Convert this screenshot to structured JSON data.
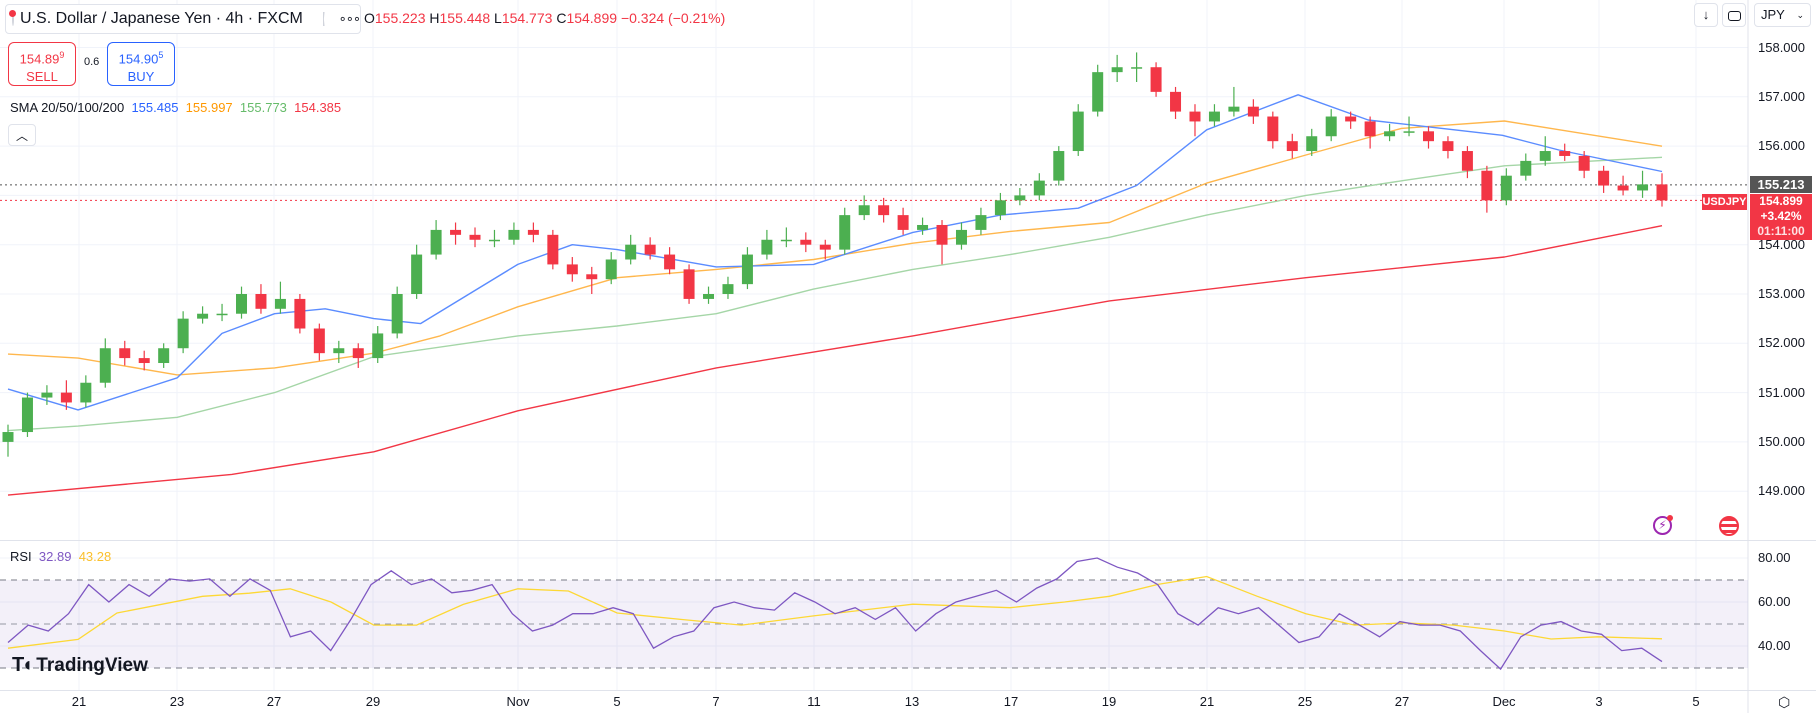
{
  "header": {
    "symbol_title": "U.S. Dollar / Japanese Yen · 4h · FXCM",
    "ohlc": {
      "o_label": "O",
      "o": "155.223",
      "h_label": "H",
      "h": "155.448",
      "l_label": "L",
      "l": "154.773",
      "c_label": "C",
      "c": "154.899",
      "change": "−0.324 (−0.21%)"
    },
    "sell": {
      "price": "154.89",
      "price_sup": "9",
      "label": "SELL"
    },
    "buy": {
      "price": "154.90",
      "price_sup": "5",
      "label": "BUY"
    },
    "spread": "0.6",
    "sma_legend": {
      "label": "SMA 20/50/100/200",
      "v20": "155.485",
      "v50": "155.997",
      "v100": "155.773",
      "v200": "154.385"
    },
    "collapse_icon": "chevron-up-icon",
    "currency_dropdown": "JPY"
  },
  "price_axis": {
    "labels": [
      "158.000",
      "157.000",
      "156.000",
      "154.000",
      "153.000",
      "152.000",
      "151.000",
      "150.000",
      "149.000"
    ],
    "prev_close_label": "155.213",
    "last_price": {
      "symbol": "USDJPY",
      "price": "154.899",
      "change": "+3.42%",
      "countdown": "01:11:00"
    }
  },
  "rsi_legend": {
    "label": "RSI",
    "rsi": "32.89",
    "ma": "43.28"
  },
  "rsi_axis": [
    "80.00",
    "60.00",
    "40.00"
  ],
  "time_axis": [
    "21",
    "23",
    "27",
    "29",
    "Nov",
    "5",
    "7",
    "11",
    "13",
    "17",
    "19",
    "21",
    "25",
    "27",
    "Dec",
    "3",
    "5"
  ],
  "logo": "TradingView",
  "colors": {
    "up": "#4caf50",
    "down": "#f23645",
    "sma20": "#5b8cff",
    "sma50": "#ffb74d",
    "sma100": "#a5d6a7",
    "sma200": "#f23645",
    "rsi": "#7e57c2",
    "rsi_ma": "#fdd835"
  },
  "chart_data": {
    "type": "candlestick",
    "symbol": "USDJPY",
    "interval": "4h",
    "ylim": [
      148.7,
      158.3
    ],
    "grid": true,
    "candles_ohlc": [
      [
        150.0,
        150.35,
        149.7,
        150.2
      ],
      [
        150.2,
        151.0,
        150.1,
        150.9
      ],
      [
        150.9,
        151.15,
        150.75,
        151.0
      ],
      [
        151.0,
        151.25,
        150.65,
        150.8
      ],
      [
        150.8,
        151.35,
        150.7,
        151.2
      ],
      [
        151.2,
        152.1,
        151.1,
        151.9
      ],
      [
        151.9,
        152.05,
        151.55,
        151.7
      ],
      [
        151.7,
        151.85,
        151.45,
        151.6
      ],
      [
        151.6,
        152.0,
        151.5,
        151.9
      ],
      [
        151.9,
        152.65,
        151.8,
        152.5
      ],
      [
        152.5,
        152.75,
        152.4,
        152.6
      ],
      [
        152.6,
        152.8,
        152.45,
        152.6
      ],
      [
        152.6,
        153.15,
        152.5,
        153.0
      ],
      [
        153.0,
        153.2,
        152.6,
        152.7
      ],
      [
        152.7,
        153.25,
        152.6,
        152.9
      ],
      [
        152.9,
        153.0,
        152.2,
        152.3
      ],
      [
        152.3,
        152.4,
        151.65,
        151.8
      ],
      [
        151.8,
        152.05,
        151.6,
        151.9
      ],
      [
        151.9,
        152.0,
        151.5,
        151.7
      ],
      [
        151.7,
        152.35,
        151.6,
        152.2
      ],
      [
        152.2,
        153.15,
        152.1,
        153.0
      ],
      [
        153.0,
        154.0,
        152.9,
        153.8
      ],
      [
        153.8,
        154.5,
        153.7,
        154.3
      ],
      [
        154.3,
        154.45,
        154.0,
        154.2
      ],
      [
        154.2,
        154.35,
        153.95,
        154.1
      ],
      [
        154.1,
        154.3,
        153.95,
        154.1
      ],
      [
        154.1,
        154.45,
        154.0,
        154.3
      ],
      [
        154.3,
        154.45,
        154.05,
        154.2
      ],
      [
        154.2,
        154.3,
        153.5,
        153.6
      ],
      [
        153.6,
        153.75,
        153.25,
        153.4
      ],
      [
        153.4,
        153.55,
        153.0,
        153.3
      ],
      [
        153.3,
        153.85,
        153.2,
        153.7
      ],
      [
        153.7,
        154.2,
        153.6,
        154.0
      ],
      [
        154.0,
        154.15,
        153.7,
        153.8
      ],
      [
        153.8,
        153.95,
        153.4,
        153.5
      ],
      [
        153.5,
        153.6,
        152.8,
        152.9
      ],
      [
        152.9,
        153.15,
        152.8,
        153.0
      ],
      [
        153.0,
        153.35,
        152.9,
        153.2
      ],
      [
        153.2,
        153.95,
        153.1,
        153.8
      ],
      [
        153.8,
        154.3,
        153.7,
        154.1
      ],
      [
        154.1,
        154.35,
        153.95,
        154.1
      ],
      [
        154.1,
        154.25,
        153.85,
        154.0
      ],
      [
        154.0,
        154.1,
        153.7,
        153.9
      ],
      [
        153.9,
        154.75,
        153.8,
        154.6
      ],
      [
        154.6,
        155.0,
        154.5,
        154.8
      ],
      [
        154.8,
        154.95,
        154.45,
        154.6
      ],
      [
        154.6,
        154.75,
        154.2,
        154.3
      ],
      [
        154.3,
        154.55,
        154.2,
        154.4
      ],
      [
        154.4,
        154.5,
        153.6,
        154.0
      ],
      [
        154.0,
        154.45,
        153.9,
        154.3
      ],
      [
        154.3,
        154.75,
        154.2,
        154.6
      ],
      [
        154.6,
        155.05,
        154.5,
        154.9
      ],
      [
        154.9,
        155.15,
        154.8,
        155.0
      ],
      [
        155.0,
        155.45,
        154.9,
        155.3
      ],
      [
        155.3,
        156.0,
        155.2,
        155.9
      ],
      [
        155.9,
        156.85,
        155.8,
        156.7
      ],
      [
        156.7,
        157.65,
        156.6,
        157.5
      ],
      [
        157.5,
        157.85,
        157.3,
        157.6
      ],
      [
        157.6,
        157.9,
        157.3,
        157.6
      ],
      [
        157.6,
        157.7,
        157.0,
        157.1
      ],
      [
        157.1,
        157.2,
        156.55,
        156.7
      ],
      [
        156.7,
        156.85,
        156.2,
        156.5
      ],
      [
        156.5,
        156.85,
        156.4,
        156.7
      ],
      [
        156.7,
        157.2,
        156.6,
        156.8
      ],
      [
        156.8,
        156.95,
        156.45,
        156.6
      ],
      [
        156.6,
        156.7,
        155.95,
        156.1
      ],
      [
        156.1,
        156.25,
        155.75,
        155.9
      ],
      [
        155.9,
        156.35,
        155.8,
        156.2
      ],
      [
        156.2,
        156.75,
        156.1,
        156.6
      ],
      [
        156.6,
        156.7,
        156.35,
        156.5
      ],
      [
        156.5,
        156.6,
        155.95,
        156.2
      ],
      [
        156.2,
        156.45,
        156.1,
        156.3
      ],
      [
        156.3,
        156.6,
        156.2,
        156.3
      ],
      [
        156.3,
        156.4,
        155.95,
        156.1
      ],
      [
        156.1,
        156.2,
        155.75,
        155.9
      ],
      [
        155.9,
        156.0,
        155.35,
        155.5
      ],
      [
        155.5,
        155.6,
        154.65,
        154.9
      ],
      [
        154.9,
        155.55,
        154.8,
        155.4
      ],
      [
        155.4,
        155.85,
        155.3,
        155.7
      ],
      [
        155.7,
        156.2,
        155.6,
        155.9
      ],
      [
        155.9,
        156.05,
        155.7,
        155.8
      ],
      [
        155.8,
        155.9,
        155.35,
        155.5
      ],
      [
        155.5,
        155.6,
        155.05,
        155.2
      ],
      [
        155.2,
        155.4,
        155.0,
        155.1
      ],
      [
        155.1,
        155.5,
        154.95,
        155.223
      ],
      [
        155.223,
        155.448,
        154.773,
        154.899
      ]
    ],
    "reference_lines": {
      "prev_close": 155.213,
      "last": 154.899
    },
    "sma_series_bar_value": {
      "sma20": [
        [
          0,
          151.07
        ],
        [
          3.6,
          150.65
        ],
        [
          8.7,
          151.3
        ],
        [
          11,
          152.2
        ],
        [
          13.7,
          152.6
        ],
        [
          16.3,
          152.7
        ],
        [
          18.8,
          152.5
        ],
        [
          21.2,
          152.4
        ],
        [
          26.2,
          153.6
        ],
        [
          29,
          154.0
        ],
        [
          31.3,
          153.9
        ],
        [
          36.4,
          153.55
        ],
        [
          41.4,
          153.6
        ],
        [
          46.5,
          154.25
        ],
        [
          51,
          154.6
        ],
        [
          55,
          154.74
        ],
        [
          58,
          155.2
        ],
        [
          61.6,
          156.33
        ],
        [
          66.3,
          157.04
        ],
        [
          69.9,
          156.53
        ],
        [
          76.8,
          156.22
        ],
        [
          79.7,
          155.92
        ],
        [
          85,
          155.485
        ]
      ],
      "sma50": [
        [
          0,
          151.78
        ],
        [
          3.6,
          151.7
        ],
        [
          8.7,
          151.36
        ],
        [
          13.7,
          151.5
        ],
        [
          18.8,
          151.8
        ],
        [
          22.2,
          152.15
        ],
        [
          26.2,
          152.74
        ],
        [
          31.3,
          153.33
        ],
        [
          36.4,
          153.5
        ],
        [
          41.4,
          153.7
        ],
        [
          46.5,
          154.03
        ],
        [
          51.5,
          154.27
        ],
        [
          56.6,
          154.45
        ],
        [
          61.6,
          155.25
        ],
        [
          66.7,
          155.82
        ],
        [
          71.6,
          156.36
        ],
        [
          76.9,
          156.51
        ],
        [
          85,
          155.997
        ]
      ],
      "sma100": [
        [
          0,
          150.23
        ],
        [
          3.6,
          150.32
        ],
        [
          8.7,
          150.5
        ],
        [
          13.7,
          151.0
        ],
        [
          18.8,
          151.73
        ],
        [
          26.2,
          152.15
        ],
        [
          31.3,
          152.35
        ],
        [
          36.4,
          152.6
        ],
        [
          41.4,
          153.1
        ],
        [
          46.5,
          153.5
        ],
        [
          51.5,
          153.8
        ],
        [
          56.6,
          154.15
        ],
        [
          61.6,
          154.6
        ],
        [
          66.7,
          155.0
        ],
        [
          71.7,
          155.3
        ],
        [
          76.9,
          155.6
        ],
        [
          85,
          155.773
        ]
      ],
      "sma200": [
        [
          0,
          148.92
        ],
        [
          11.5,
          149.34
        ],
        [
          18.8,
          149.8
        ],
        [
          26.2,
          150.63
        ],
        [
          36.4,
          151.5
        ],
        [
          46.5,
          152.15
        ],
        [
          56.6,
          152.86
        ],
        [
          66.7,
          153.33
        ],
        [
          76.9,
          153.75
        ],
        [
          85,
          154.385
        ]
      ]
    },
    "rsi": {
      "ylim": [
        25,
        85
      ],
      "bands": [
        70,
        50,
        30
      ],
      "values": [
        41.6,
        49.5,
        46.8,
        54.7,
        67.9,
        60,
        67.9,
        62.6,
        70.5,
        69.5,
        70.5,
        62.6,
        70.5,
        65.3,
        44.2,
        46.8,
        37.9,
        52.1,
        67.9,
        74.2,
        67.9,
        70.5,
        64.2,
        65.3,
        67.9,
        54.7,
        46.8,
        49.5,
        54.7,
        54.7,
        57.4,
        54.7,
        39,
        44.2,
        46.8,
        57.4,
        60,
        57.4,
        56.3,
        64.2,
        60,
        54.7,
        57.4,
        52.1,
        57.4,
        46.8,
        54.7,
        60,
        62.6,
        65.3,
        60,
        66.3,
        70.5,
        78.4,
        80,
        75.8,
        73.2,
        67.9,
        54.7,
        49.5,
        57.4,
        54.7,
        57.4,
        49.5,
        41.6,
        44.2,
        54.7,
        49.5,
        44.2,
        51.1,
        49.5,
        49.5,
        46.8,
        37.9,
        29.5,
        44.2,
        49.5,
        51.1,
        46.8,
        45.3,
        37.9,
        39,
        32.89
      ],
      "ma_bar_value": [
        [
          0,
          39
        ],
        [
          3.6,
          43
        ],
        [
          5.6,
          55
        ],
        [
          10,
          62.6
        ],
        [
          12.4,
          64
        ],
        [
          14.5,
          66
        ],
        [
          16.6,
          60
        ],
        [
          18.8,
          49.5
        ],
        [
          21,
          49.5
        ],
        [
          23.4,
          58.9
        ],
        [
          26.2,
          66
        ],
        [
          28.8,
          65
        ],
        [
          31.3,
          55
        ],
        [
          34.7,
          52
        ],
        [
          37.7,
          49.5
        ],
        [
          41.4,
          53.7
        ],
        [
          46.5,
          59
        ],
        [
          51.5,
          57.4
        ],
        [
          54.3,
          60
        ],
        [
          56.6,
          62.6
        ],
        [
          59.1,
          68
        ],
        [
          61.6,
          71.6
        ],
        [
          64.2,
          62.6
        ],
        [
          66.7,
          54.7
        ],
        [
          69.2,
          49.5
        ],
        [
          71.7,
          50.5
        ],
        [
          74.3,
          49.5
        ],
        [
          76.9,
          46.8
        ],
        [
          79.3,
          43.2
        ],
        [
          81.7,
          44.2
        ],
        [
          85,
          43.28
        ]
      ]
    }
  }
}
